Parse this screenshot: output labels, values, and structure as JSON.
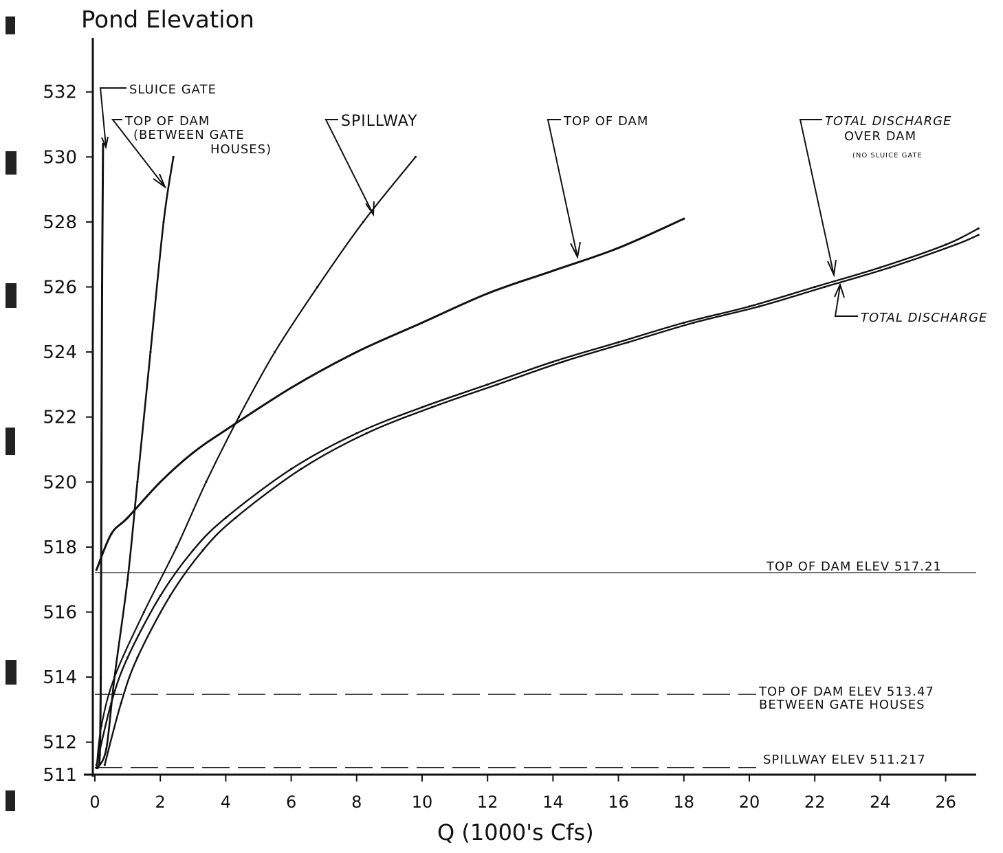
{
  "chart_data": {
    "type": "line",
    "title": "Pond Elevation",
    "xlabel": "Q (1000's Cfs)",
    "ylabel": "",
    "xlim": [
      0,
      27
    ],
    "ylim": [
      511,
      535
    ],
    "x_ticks": [
      "0",
      "2",
      "4",
      "6",
      "8",
      "10",
      "12",
      "14",
      "16",
      "18",
      "20",
      "22",
      "24",
      "26"
    ],
    "y_ticks": [
      "511",
      "512",
      "514",
      "516",
      "518",
      "520",
      "522",
      "524",
      "526",
      "528",
      "530",
      "532"
    ],
    "grid": false,
    "series": [
      {
        "name": "SLUICE GATE",
        "points": [
          [
            0.08,
            511.2
          ],
          [
            0.15,
            511.6
          ],
          [
            0.18,
            514
          ],
          [
            0.2,
            520
          ],
          [
            0.22,
            526
          ],
          [
            0.25,
            530.4
          ]
        ]
      },
      {
        "name": "TOP OF DAM (BETWEEN GATE HOUSES)",
        "points": [
          [
            0.08,
            511.2
          ],
          [
            0.35,
            511.8
          ],
          [
            0.6,
            514
          ],
          [
            1.0,
            517
          ],
          [
            1.3,
            520
          ],
          [
            1.7,
            524
          ],
          [
            2.1,
            528
          ],
          [
            2.4,
            530
          ]
        ]
      },
      {
        "name": "SPILLWAY",
        "points": [
          [
            0.05,
            511.2
          ],
          [
            0.2,
            512.5
          ],
          [
            0.6,
            514
          ],
          [
            1.5,
            516
          ],
          [
            2.5,
            518
          ],
          [
            3.4,
            520
          ],
          [
            4.4,
            522
          ],
          [
            5.5,
            524
          ],
          [
            6.8,
            526
          ],
          [
            8.2,
            528
          ],
          [
            9.8,
            530
          ]
        ]
      },
      {
        "name": "TOP OF DAM",
        "points": [
          [
            0.05,
            517.3
          ],
          [
            0.5,
            518.4
          ],
          [
            1.0,
            518.9
          ],
          [
            2.0,
            520.0
          ],
          [
            3.0,
            520.9
          ],
          [
            4.0,
            521.6
          ],
          [
            6.0,
            522.9
          ],
          [
            8.0,
            524.0
          ],
          [
            10.0,
            524.9
          ],
          [
            12.0,
            525.8
          ],
          [
            14.0,
            526.5
          ],
          [
            16.0,
            527.2
          ],
          [
            18.0,
            528.1
          ]
        ]
      },
      {
        "name": "TOTAL DISCHARGE OVER DAM (NO SLUICE GATE)",
        "points": [
          [
            0.05,
            511.3
          ],
          [
            0.5,
            513.2
          ],
          [
            1.0,
            514.6
          ],
          [
            2.0,
            516.5
          ],
          [
            3.0,
            517.9
          ],
          [
            4.0,
            518.9
          ],
          [
            6.0,
            520.4
          ],
          [
            8.0,
            521.5
          ],
          [
            10.0,
            522.3
          ],
          [
            12.0,
            523.0
          ],
          [
            14.0,
            523.7
          ],
          [
            16.0,
            524.3
          ],
          [
            18.0,
            524.9
          ],
          [
            20.0,
            525.4
          ],
          [
            22.0,
            526.0
          ],
          [
            24.0,
            526.6
          ],
          [
            26.0,
            527.3
          ],
          [
            27.0,
            527.8
          ]
        ]
      },
      {
        "name": "TOTAL DISCHARGE",
        "points": [
          [
            0.3,
            511.3
          ],
          [
            0.8,
            513.2
          ],
          [
            1.3,
            514.6
          ],
          [
            2.3,
            516.5
          ],
          [
            3.3,
            517.9
          ],
          [
            4.3,
            518.9
          ],
          [
            6.3,
            520.4
          ],
          [
            8.3,
            521.5
          ],
          [
            10.3,
            522.3
          ],
          [
            12.3,
            523.0
          ],
          [
            14.3,
            523.7
          ],
          [
            16.3,
            524.3
          ],
          [
            18.3,
            524.9
          ],
          [
            20.3,
            525.4
          ],
          [
            22.3,
            526.0
          ],
          [
            24.3,
            526.6
          ],
          [
            26.3,
            527.3
          ],
          [
            27.0,
            527.6
          ]
        ]
      }
    ],
    "reference_lines": [
      {
        "label": "TOP OF DAM ELEV 517.21",
        "y": 517.21
      },
      {
        "label_line1": "TOP OF DAM ELEV 513.47",
        "label_line2": "BETWEEN GATE HOUSES",
        "y": 513.47
      },
      {
        "label": "SPILLWAY ELEV 511.217",
        "y": 511.217
      }
    ],
    "annotations": {
      "sluice_gate": "SLUICE GATE",
      "top_of_dam_gate_line1": "TOP OF DAM",
      "top_of_dam_gate_line2": "(BETWEEN GATE",
      "top_of_dam_gate_line3": "HOUSES)",
      "spillway": "SPILLWAY",
      "top_of_dam": "TOP OF DAM",
      "total_over_line1": "TOTAL DISCHARGE",
      "total_over_line2": "OVER DAM",
      "total_over_line3": "(NO SLUICE GATE",
      "total_discharge": "TOTAL DISCHARGE"
    }
  }
}
